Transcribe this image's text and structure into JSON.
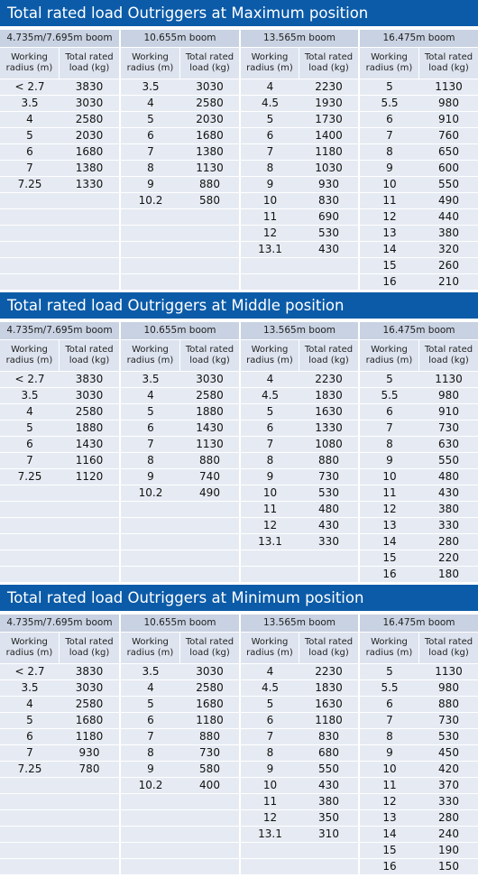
{
  "column_headers": [
    "Working radius (m)",
    "Total rated load (kg)"
  ],
  "sections": [
    {
      "title": "Total rated load Outriggers at Maximum position",
      "booms": [
        {
          "name": "4.735m/7.695m boom",
          "rows": [
            [
              "< 2.7",
              3830
            ],
            [
              3.5,
              3030
            ],
            [
              4,
              2580
            ],
            [
              5,
              2030
            ],
            [
              6,
              1680
            ],
            [
              7,
              1380
            ],
            [
              7.25,
              1330
            ]
          ]
        },
        {
          "name": "10.655m boom",
          "rows": [
            [
              3.5,
              3030
            ],
            [
              4,
              2580
            ],
            [
              5,
              2030
            ],
            [
              6,
              1680
            ],
            [
              7,
              1380
            ],
            [
              8,
              1130
            ],
            [
              9,
              880
            ],
            [
              10.2,
              580
            ]
          ]
        },
        {
          "name": "13.565m boom",
          "rows": [
            [
              4,
              2230
            ],
            [
              4.5,
              1930
            ],
            [
              5,
              1730
            ],
            [
              6,
              1400
            ],
            [
              7,
              1180
            ],
            [
              8,
              1030
            ],
            [
              9,
              930
            ],
            [
              10,
              830
            ],
            [
              11,
              690
            ],
            [
              12,
              530
            ],
            [
              13.1,
              430
            ]
          ]
        },
        {
          "name": "16.475m boom",
          "rows": [
            [
              5,
              1130
            ],
            [
              5.5,
              980
            ],
            [
              6,
              910
            ],
            [
              7,
              760
            ],
            [
              8,
              650
            ],
            [
              9,
              600
            ],
            [
              10,
              550
            ],
            [
              11,
              490
            ],
            [
              12,
              440
            ],
            [
              13,
              380
            ],
            [
              14,
              320
            ],
            [
              15,
              260
            ],
            [
              16,
              210
            ]
          ]
        }
      ]
    },
    {
      "title": "Total rated load Outriggers at Middle position",
      "booms": [
        {
          "name": "4.735m/7.695m boom",
          "rows": [
            [
              "< 2.7",
              3830
            ],
            [
              3.5,
              3030
            ],
            [
              4,
              2580
            ],
            [
              5,
              1880
            ],
            [
              6,
              1430
            ],
            [
              7,
              1160
            ],
            [
              7.25,
              1120
            ]
          ]
        },
        {
          "name": "10.655m boom",
          "rows": [
            [
              3.5,
              3030
            ],
            [
              4,
              2580
            ],
            [
              5,
              1880
            ],
            [
              6,
              1430
            ],
            [
              7,
              1130
            ],
            [
              8,
              880
            ],
            [
              9,
              740
            ],
            [
              10.2,
              490
            ]
          ]
        },
        {
          "name": "13.565m boom",
          "rows": [
            [
              4,
              2230
            ],
            [
              4.5,
              1830
            ],
            [
              5,
              1630
            ],
            [
              6,
              1330
            ],
            [
              7,
              1080
            ],
            [
              8,
              880
            ],
            [
              9,
              730
            ],
            [
              10,
              530
            ],
            [
              11,
              480
            ],
            [
              12,
              430
            ],
            [
              13.1,
              330
            ]
          ]
        },
        {
          "name": "16.475m boom",
          "rows": [
            [
              5,
              1130
            ],
            [
              5.5,
              980
            ],
            [
              6,
              910
            ],
            [
              7,
              730
            ],
            [
              8,
              630
            ],
            [
              9,
              550
            ],
            [
              10,
              480
            ],
            [
              11,
              430
            ],
            [
              12,
              380
            ],
            [
              13,
              330
            ],
            [
              14,
              280
            ],
            [
              15,
              220
            ],
            [
              16,
              180
            ]
          ]
        }
      ]
    },
    {
      "title": "Total rated load Outriggers at Minimum position",
      "booms": [
        {
          "name": "4.735m/7.695m boom",
          "rows": [
            [
              "< 2.7",
              3830
            ],
            [
              3.5,
              3030
            ],
            [
              4,
              2580
            ],
            [
              5,
              1680
            ],
            [
              6,
              1180
            ],
            [
              7,
              930
            ],
            [
              7.25,
              780
            ]
          ]
        },
        {
          "name": "10.655m boom",
          "rows": [
            [
              3.5,
              3030
            ],
            [
              4,
              2580
            ],
            [
              5,
              1680
            ],
            [
              6,
              1180
            ],
            [
              7,
              880
            ],
            [
              8,
              730
            ],
            [
              9,
              580
            ],
            [
              10.2,
              400
            ]
          ]
        },
        {
          "name": "13.565m boom",
          "rows": [
            [
              4,
              2230
            ],
            [
              4.5,
              1830
            ],
            [
              5,
              1630
            ],
            [
              6,
              1180
            ],
            [
              7,
              830
            ],
            [
              8,
              680
            ],
            [
              9,
              550
            ],
            [
              10,
              430
            ],
            [
              11,
              380
            ],
            [
              12,
              350
            ],
            [
              13.1,
              310
            ]
          ]
        },
        {
          "name": "16.475m boom",
          "rows": [
            [
              5,
              1130
            ],
            [
              5.5,
              980
            ],
            [
              6,
              880
            ],
            [
              7,
              730
            ],
            [
              8,
              530
            ],
            [
              9,
              450
            ],
            [
              10,
              420
            ],
            [
              11,
              370
            ],
            [
              12,
              330
            ],
            [
              13,
              280
            ],
            [
              14,
              240
            ],
            [
              15,
              190
            ],
            [
              16,
              150
            ]
          ]
        }
      ]
    }
  ]
}
